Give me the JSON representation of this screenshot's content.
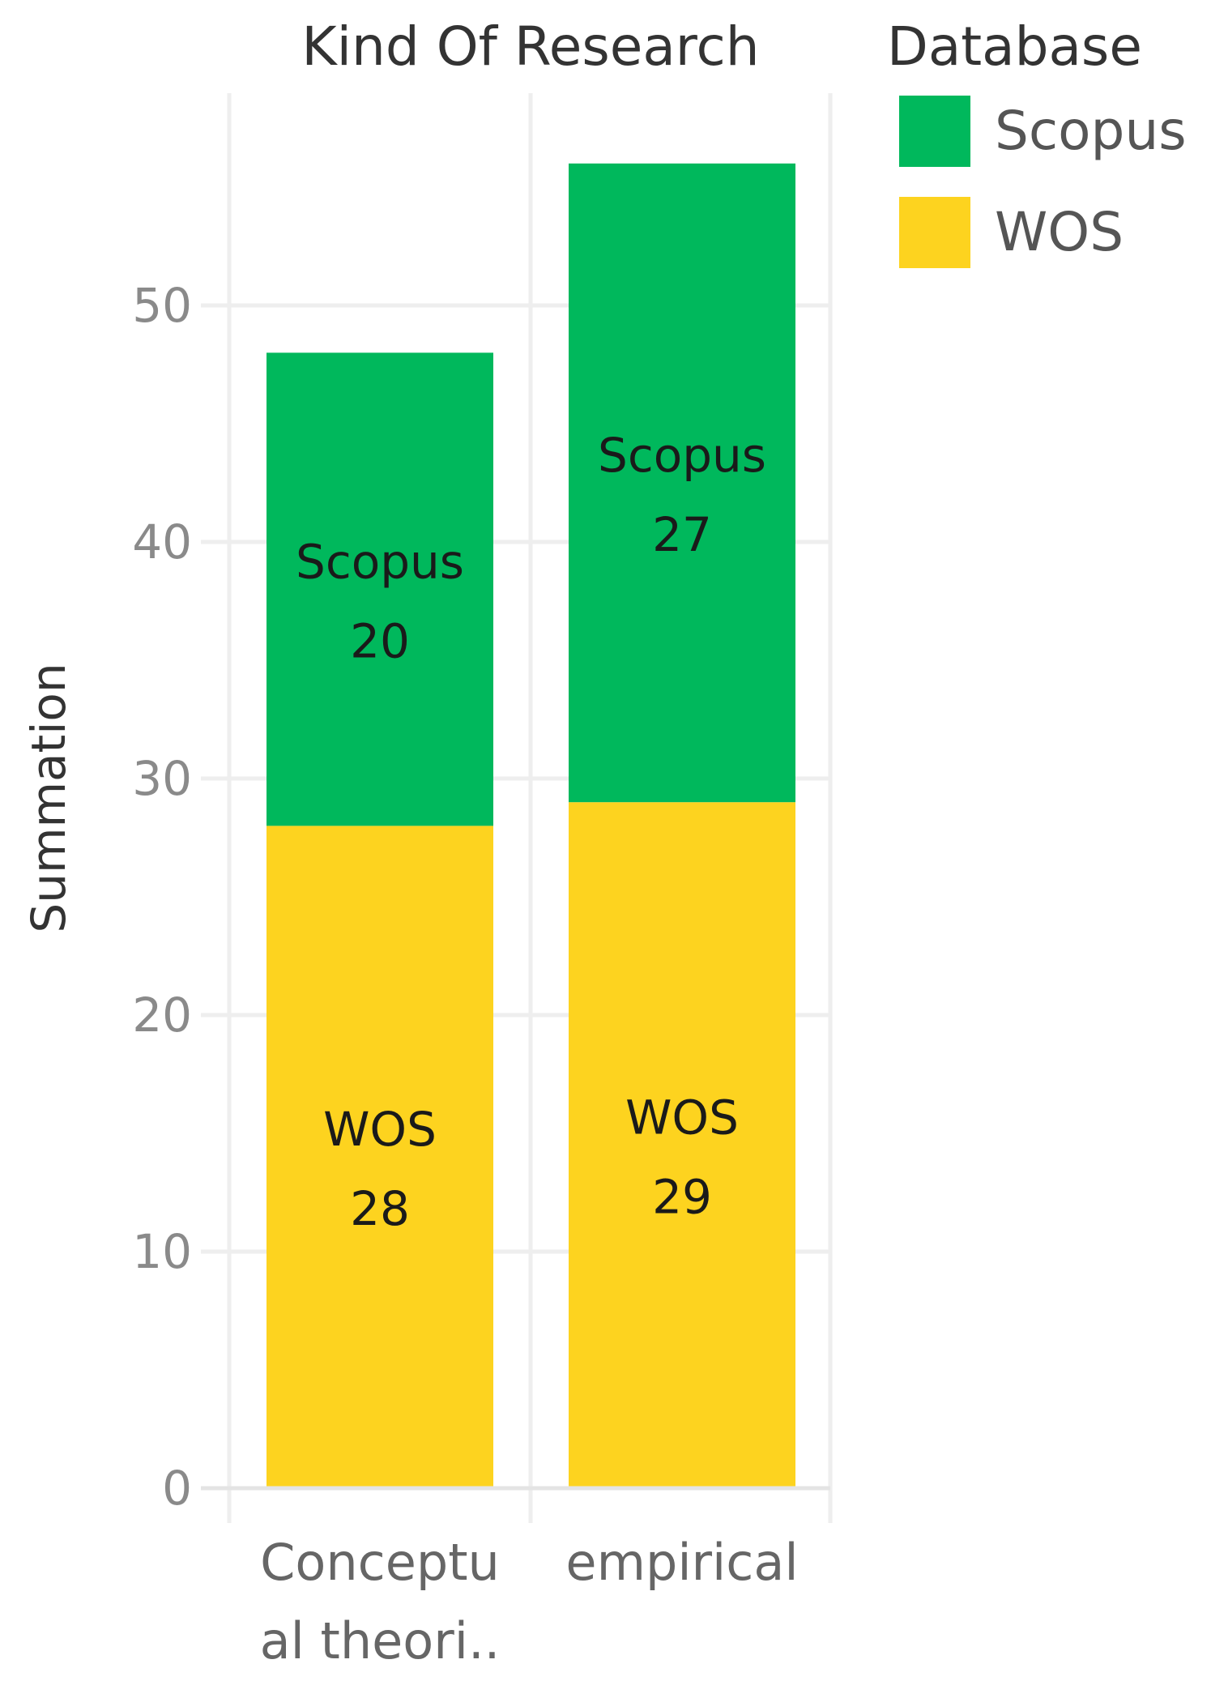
{
  "chart_data": {
    "type": "bar",
    "stacked": true,
    "title": "Kind Of Research",
    "xlabel": "",
    "ylabel": "Summation",
    "categories": [
      "Conceptual theoretical",
      "empirical"
    ],
    "category_display": [
      [
        "Conceptu",
        "al theori.."
      ],
      [
        "empirical"
      ]
    ],
    "series": [
      {
        "name": "WOS",
        "values": [
          28,
          29
        ],
        "color": "#FDD31F"
      },
      {
        "name": "Scopus",
        "values": [
          20,
          27
        ],
        "color": "#00B85C"
      }
    ],
    "ylim": [
      0,
      58
    ],
    "yticks": [
      0,
      10,
      20,
      30,
      40,
      50
    ],
    "grid": true,
    "legend": {
      "title": "Database",
      "position": "top-right",
      "entries": [
        {
          "name": "Scopus",
          "color": "#00B85C"
        },
        {
          "name": "WOS",
          "color": "#FDD31F"
        }
      ]
    }
  }
}
